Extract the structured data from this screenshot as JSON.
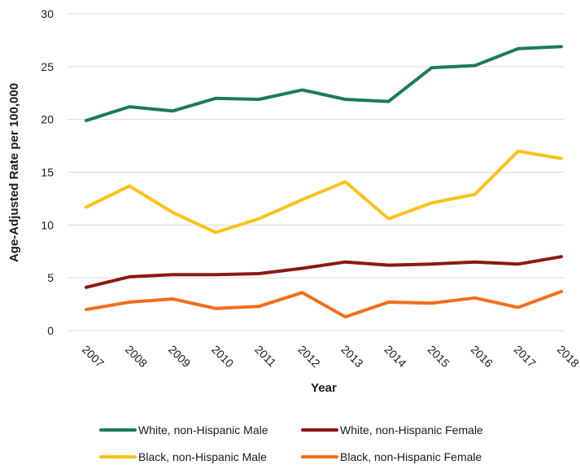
{
  "chart_data": {
    "type": "line",
    "title": "",
    "xlabel": "Year",
    "ylabel": "Age-Adjusted Rate per 100,000",
    "ylim": [
      0,
      30
    ],
    "yticks": [
      0,
      5,
      10,
      15,
      20,
      25,
      30
    ],
    "grid": true,
    "legend_position": "bottom",
    "categories": [
      "2007",
      "2008",
      "2009",
      "2010",
      "2011",
      "2012",
      "2013",
      "2014",
      "2015",
      "2016",
      "2017",
      "2018"
    ],
    "series": [
      {
        "name": "White, non-Hispanic Male",
        "color": "#1e7b57",
        "values": [
          19.9,
          21.2,
          20.8,
          22.0,
          21.9,
          22.8,
          21.9,
          21.7,
          24.9,
          25.1,
          26.7,
          26.9
        ]
      },
      {
        "name": "White, non-Hispanic Female",
        "color": "#8b1a12",
        "values": [
          4.1,
          5.1,
          5.3,
          5.3,
          5.4,
          5.9,
          6.5,
          6.2,
          6.3,
          6.5,
          6.3,
          7.0
        ]
      },
      {
        "name": "Black, non-Hispanic Male",
        "color": "#fcc21b",
        "values": [
          11.7,
          13.7,
          11.2,
          9.3,
          10.6,
          12.4,
          14.1,
          10.6,
          12.1,
          12.9,
          17.0,
          16.3
        ]
      },
      {
        "name": "Black, non-Hispanic Female",
        "color": "#f46d1b",
        "values": [
          2.0,
          2.7,
          3.0,
          2.1,
          2.3,
          3.6,
          1.3,
          2.7,
          2.6,
          3.1,
          2.2,
          3.7
        ]
      }
    ]
  }
}
